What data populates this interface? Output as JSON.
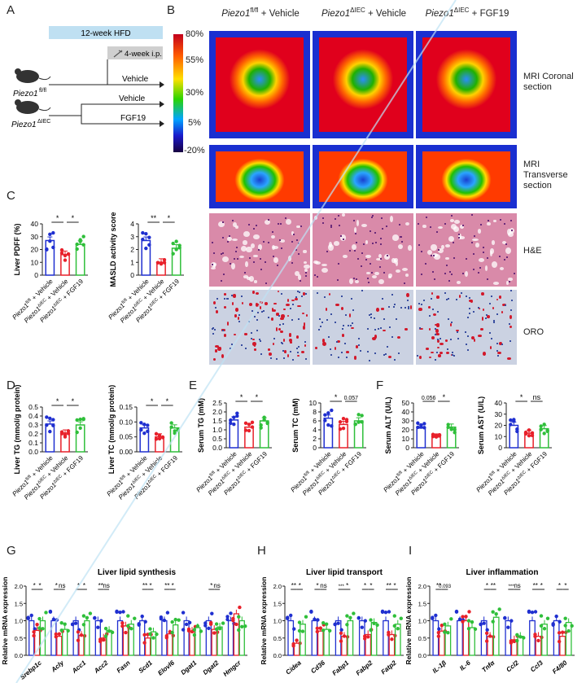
{
  "panels": {
    "A": "A",
    "B": "B",
    "C": "C",
    "D": "D",
    "E": "E",
    "F": "F",
    "G": "G",
    "H": "H",
    "I": "I"
  },
  "panelA": {
    "hfd": "12-week HFD",
    "ip": "4-week i.p.",
    "mouse1": "Piezo1",
    "mouse1_sup": "fl/fl",
    "mouse2": "Piezo1",
    "mouse2_sup": "ΔIEC",
    "arm1": "Vehicle",
    "arm2": "Vehicle",
    "arm3": "FGF19"
  },
  "panelB": {
    "headers": [
      {
        "gene": "Piezo1",
        "sup": "fl/fl",
        "rest": " + Vehicle"
      },
      {
        "gene": "Piezo1",
        "sup": "ΔIEC",
        "rest": " + Vehicle"
      },
      {
        "gene": "Piezo1",
        "sup": "ΔIEC",
        "rest": " + FGF19"
      }
    ],
    "scale": [
      "80%",
      "55%",
      "30%",
      "5%",
      "-20%"
    ],
    "rows": [
      "MRI Coronal section",
      "MRI Transverse section",
      "H&E",
      "ORO"
    ]
  },
  "colors": {
    "blue": "#1f2fd0",
    "red": "#e8202a",
    "green": "#2fbf3a"
  },
  "group_labels": [
    {
      "gene": "Piezo1",
      "sup": "fl/fl",
      "rest": " + Vehicle"
    },
    {
      "gene": "Piezo1",
      "sup": "ΔIEC",
      "rest": " + Vehicle"
    },
    {
      "gene": "Piezo1",
      "sup": "ΔIEC",
      "rest": " + FGF19"
    }
  ],
  "chart_data": [
    {
      "id": "C1",
      "type": "bar",
      "ylabel": "Liver PDFF (%)",
      "ylim": [
        0,
        40
      ],
      "yticks": [
        "0",
        "10",
        "20",
        "30",
        "40"
      ],
      "values": [
        27,
        16,
        24
      ],
      "sig": [
        "*",
        "*"
      ]
    },
    {
      "id": "C2",
      "type": "bar",
      "ylabel": "MASLD activity score",
      "ylim": [
        0,
        4
      ],
      "yticks": [
        "0",
        "1",
        "2",
        "3",
        "4"
      ],
      "values": [
        2.7,
        1.0,
        2.1
      ],
      "sig": [
        "**",
        "*"
      ]
    },
    {
      "id": "D1",
      "type": "bar",
      "ylabel": "Liver TG (mmol/g protein)",
      "ylim": [
        0,
        0.5
      ],
      "yticks": [
        "0.0",
        "0.1",
        "0.2",
        "0.3",
        "0.4",
        "0.5"
      ],
      "values": [
        0.31,
        0.21,
        0.3
      ],
      "sig": [
        "*",
        "*"
      ]
    },
    {
      "id": "D2",
      "type": "bar",
      "ylabel": "Liver TC (mmol/g protein)",
      "ylim": [
        0,
        0.15
      ],
      "yticks": [
        "0.00",
        "0.05",
        "0.10",
        "0.15"
      ],
      "values": [
        0.08,
        0.05,
        0.08
      ],
      "sig": [
        "*",
        "*"
      ]
    },
    {
      "id": "E1",
      "type": "bar",
      "ylabel": "Serum TG (mM)",
      "ylim": [
        0,
        2.5
      ],
      "yticks": [
        "0.0",
        "0.5",
        "1.0",
        "1.5",
        "2.0",
        "2.5"
      ],
      "values": [
        1.55,
        1.15,
        1.5
      ],
      "sig": [
        "*",
        "*"
      ]
    },
    {
      "id": "E2",
      "type": "bar",
      "ylabel": "Serum TC (mM)",
      "ylim": [
        0,
        10
      ],
      "yticks": [
        "0",
        "2",
        "4",
        "6",
        "8",
        "10"
      ],
      "values": [
        6.6,
        5.2,
        6.0
      ],
      "sig": [
        "*",
        "0.057"
      ]
    },
    {
      "id": "F1",
      "type": "bar",
      "ylabel": "Serum ALT (U/L)",
      "ylim": [
        0,
        50
      ],
      "yticks": [
        "0",
        "10",
        "20",
        "30",
        "40",
        "50"
      ],
      "values": [
        22,
        12,
        23
      ],
      "sig": [
        "0.056",
        "*"
      ]
    },
    {
      "id": "F2",
      "type": "bar",
      "ylabel": "Serum AST (U/L)",
      "ylim": [
        0,
        40
      ],
      "yticks": [
        "0",
        "10",
        "20",
        "30",
        "40"
      ],
      "values": [
        20,
        13,
        17
      ],
      "sig": [
        "*",
        "ns"
      ]
    },
    {
      "id": "G",
      "type": "bar",
      "title": "Liver lipid synthesis",
      "ylabel": "Relative mRNA expression",
      "ylim": [
        0,
        2.0
      ],
      "yticks": [
        "0.0",
        "0.5",
        "1.0",
        "1.5",
        "2.0"
      ],
      "categories": [
        "Srebp1c",
        "Acly",
        "Acc1",
        "Acc2",
        "Fasn",
        "Scd1",
        "Elovl6",
        "Dgat1",
        "Dgat2",
        "Hmgcr"
      ],
      "series": [
        {
          "values": [
            1.0,
            1.0,
            1.0,
            1.0,
            1.0,
            1.0,
            1.0,
            1.0,
            1.0,
            1.0
          ]
        },
        {
          "values": [
            0.72,
            0.55,
            0.58,
            0.5,
            0.85,
            0.5,
            0.62,
            0.7,
            0.75,
            1.2
          ]
        },
        {
          "values": [
            1.0,
            0.75,
            1.0,
            0.72,
            0.9,
            0.68,
            0.88,
            0.8,
            0.82,
            1.0
          ]
        }
      ],
      "sig": [
        [
          "*",
          "*"
        ],
        [
          "*",
          "ns"
        ],
        [
          "*",
          "*"
        ],
        [
          "**",
          "ns"
        ],
        [
          "",
          ""
        ],
        [
          "**",
          "*"
        ],
        [
          "**",
          "*"
        ],
        [
          "",
          ""
        ],
        [
          "*",
          "ns"
        ],
        [
          "",
          ""
        ]
      ]
    },
    {
      "id": "H",
      "type": "bar",
      "title": "Liver lipid transport",
      "ylabel": "Relative mRNA expression",
      "ylim": [
        0,
        2.0
      ],
      "yticks": [
        "0.0",
        "0.5",
        "1.0",
        "1.5",
        "2.0"
      ],
      "categories": [
        "Cidea",
        "Cd36",
        "Fabp1",
        "Fabp2",
        "Fatp2"
      ],
      "series": [
        {
          "values": [
            1.0,
            1.0,
            1.0,
            1.0,
            1.0
          ]
        },
        {
          "values": [
            0.35,
            0.7,
            0.55,
            0.6,
            0.6
          ]
        },
        {
          "values": [
            0.9,
            0.75,
            1.0,
            0.95,
            0.9
          ]
        }
      ],
      "sig": [
        [
          "**",
          "*"
        ],
        [
          "*",
          "ns"
        ],
        [
          "***",
          "*"
        ],
        [
          "*",
          "*"
        ],
        [
          "**",
          "*"
        ]
      ]
    },
    {
      "id": "I",
      "type": "bar",
      "title": "Liver inflammation",
      "ylabel": "Relative mRNA expression",
      "ylim": [
        0,
        2.0
      ],
      "yticks": [
        "0.0",
        "0.5",
        "1.0",
        "1.5",
        "2.0"
      ],
      "categories": [
        "IL-1β",
        "IL-6",
        "Tnfα",
        "Ccl2",
        "Ccl3",
        "F4/80"
      ],
      "series": [
        {
          "values": [
            1.0,
            1.0,
            1.0,
            1.0,
            1.0,
            1.0
          ]
        },
        {
          "values": [
            0.7,
            1.0,
            0.55,
            0.45,
            0.55,
            0.55
          ]
        },
        {
          "values": [
            0.85,
            0.8,
            1.1,
            0.55,
            0.9,
            0.95
          ]
        }
      ],
      "sig": [
        [
          "**",
          "0.093"
        ],
        [
          "",
          ""
        ],
        [
          "*",
          "**"
        ],
        [
          "***",
          "ns"
        ],
        [
          "**",
          "*"
        ],
        [
          "*",
          "*"
        ]
      ]
    }
  ]
}
